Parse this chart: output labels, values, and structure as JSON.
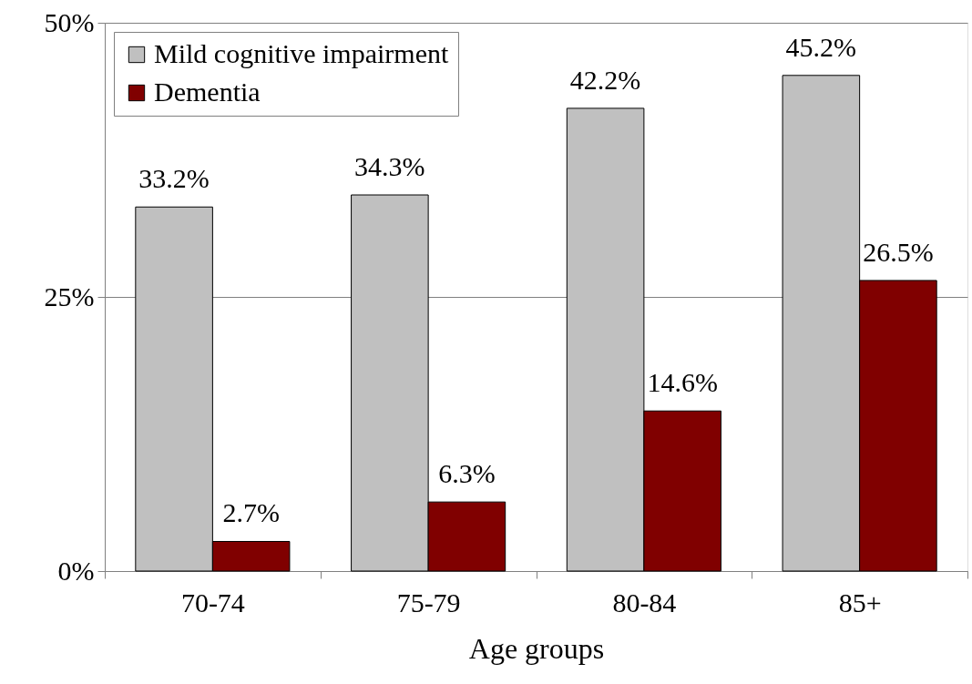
{
  "chart_data": {
    "type": "bar",
    "xlabel": "Age groups",
    "categories": [
      "70-74",
      "75-79",
      "80-84",
      "85+"
    ],
    "series": [
      {
        "name": "Mild cognitive impairment",
        "color": "#c0c0c0",
        "values": [
          33.2,
          34.3,
          42.2,
          45.2
        ],
        "value_labels": [
          "33.2%",
          "34.3%",
          "42.2%",
          "45.2%"
        ]
      },
      {
        "name": "Dementia",
        "color": "#800000",
        "values": [
          2.7,
          6.3,
          14.6,
          26.5
        ],
        "value_labels": [
          "2.7%",
          "6.3%",
          "14.6%",
          "26.5%"
        ]
      }
    ],
    "ylim": [
      0,
      50
    ],
    "yticks": [
      {
        "value": 0,
        "label": "0%"
      },
      {
        "value": 25,
        "label": "25%"
      },
      {
        "value": 50,
        "label": "50%"
      }
    ],
    "grid": "y",
    "legend": "top left"
  }
}
